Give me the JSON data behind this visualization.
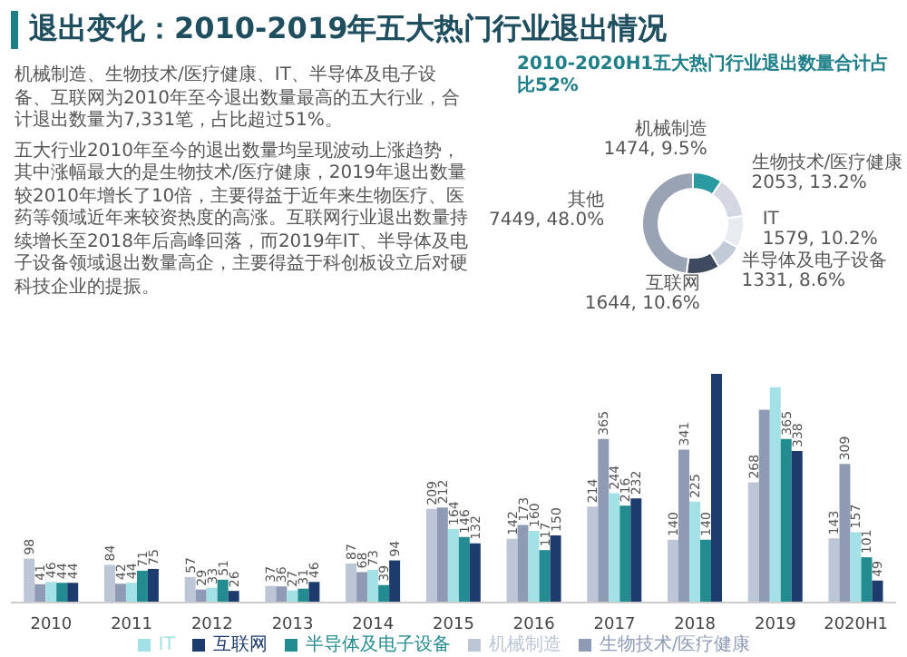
{
  "chart_data": [
    {
      "type": "other",
      "title": "退出变化：2010-2019年五大热门行业退出情况",
      "annotations": [
        "机械制造、生物技术/医疗健康、IT、半导体及电子设备、互联网为2010年至今退出数量最高的五大行业，合计退出数量为7,331笔，占比超过51%。",
        "五大行业2010年至今的退出数量均呈现波动上涨趋势，其中涨幅最大的是生物技术/医疗健康，2019年退出数量较2010年增长了10倍，主要得益于近年来生物医疗、医药等领域近年来较资热度的高涨。互联网行业退出数量持续增长至2018年后高峰回落，而2019年IT、半导体及电子设备领域退出数量高企，主要得益于科创板设立后对硬科技企业的提振。"
      ]
    },
    {
      "type": "donut",
      "title": "2010-2020H1五大热门行业退出数量合计占比52%",
      "categories": [
        "机械制造",
        "生物技术/医疗健康",
        "IT",
        "半导体及电子设备",
        "互联网",
        "其他"
      ],
      "values": [
        1474,
        2053,
        1579,
        1331,
        1644,
        7449
      ],
      "value_labels": [
        "1474, 9.5%",
        "2053, 13.2%",
        "1579, 10.2%",
        "1331, 8.6%",
        "1644, 10.6%",
        "7449, 48.0%"
      ],
      "colors": [
        "#2a9aa0",
        "#d3d8e2",
        "#e8ebf0",
        "#c3cad7",
        "#3e4a5e",
        "#9aa3b3"
      ]
    },
    {
      "type": "bar",
      "categories": [
        "2010",
        "2011",
        "2012",
        "2013",
        "2014",
        "2015",
        "2016",
        "2017",
        "2018",
        "2019",
        "2020H1"
      ],
      "legend": "bottom",
      "series": [
        {
          "name": "机械制造",
          "color": "#bcc6d6",
          "values": [
            98,
            84,
            57,
            37,
            87,
            209,
            142,
            214,
            140,
            268,
            143
          ],
          "value_labels": [
            "98",
            "84",
            "57",
            "37",
            "87",
            "209",
            "142",
            "214",
            "140",
            "268",
            "143"
          ]
        },
        {
          "name": "生物技术/医疗健康",
          "color": "#8f9bb5",
          "values": [
            41,
            42,
            29,
            36,
            68,
            212,
            173,
            365,
            341,
            430,
            309
          ],
          "value_labels": [
            "41",
            "42",
            "29",
            "36",
            "68",
            "212",
            "173",
            "365",
            "341",
            null,
            "309"
          ]
        },
        {
          "name": "IT",
          "color": "#a3e1e6",
          "values": [
            46,
            44,
            33,
            27,
            73,
            164,
            160,
            244,
            225,
            480,
            157
          ],
          "value_labels": [
            "46",
            "44",
            "33",
            "27",
            "73",
            "164",
            "160",
            "244",
            "225",
            null,
            "157"
          ]
        },
        {
          "name": "半导体及电子设备",
          "color": "#228c90",
          "values": [
            44,
            71,
            51,
            31,
            39,
            146,
            117,
            216,
            140,
            365,
            101
          ],
          "value_labels": [
            "44",
            "71",
            "51",
            "31",
            "39",
            "146",
            "117",
            "216",
            "140",
            "365",
            "101"
          ]
        },
        {
          "name": "互联网",
          "color": "#1d3b6c",
          "values": [
            44,
            75,
            26,
            46,
            94,
            132,
            150,
            232,
            510,
            338,
            49
          ],
          "value_labels": [
            "44",
            "75",
            "26",
            "46",
            "94",
            "132",
            "150",
            "232",
            null,
            "338",
            "49"
          ]
        }
      ]
    }
  ]
}
